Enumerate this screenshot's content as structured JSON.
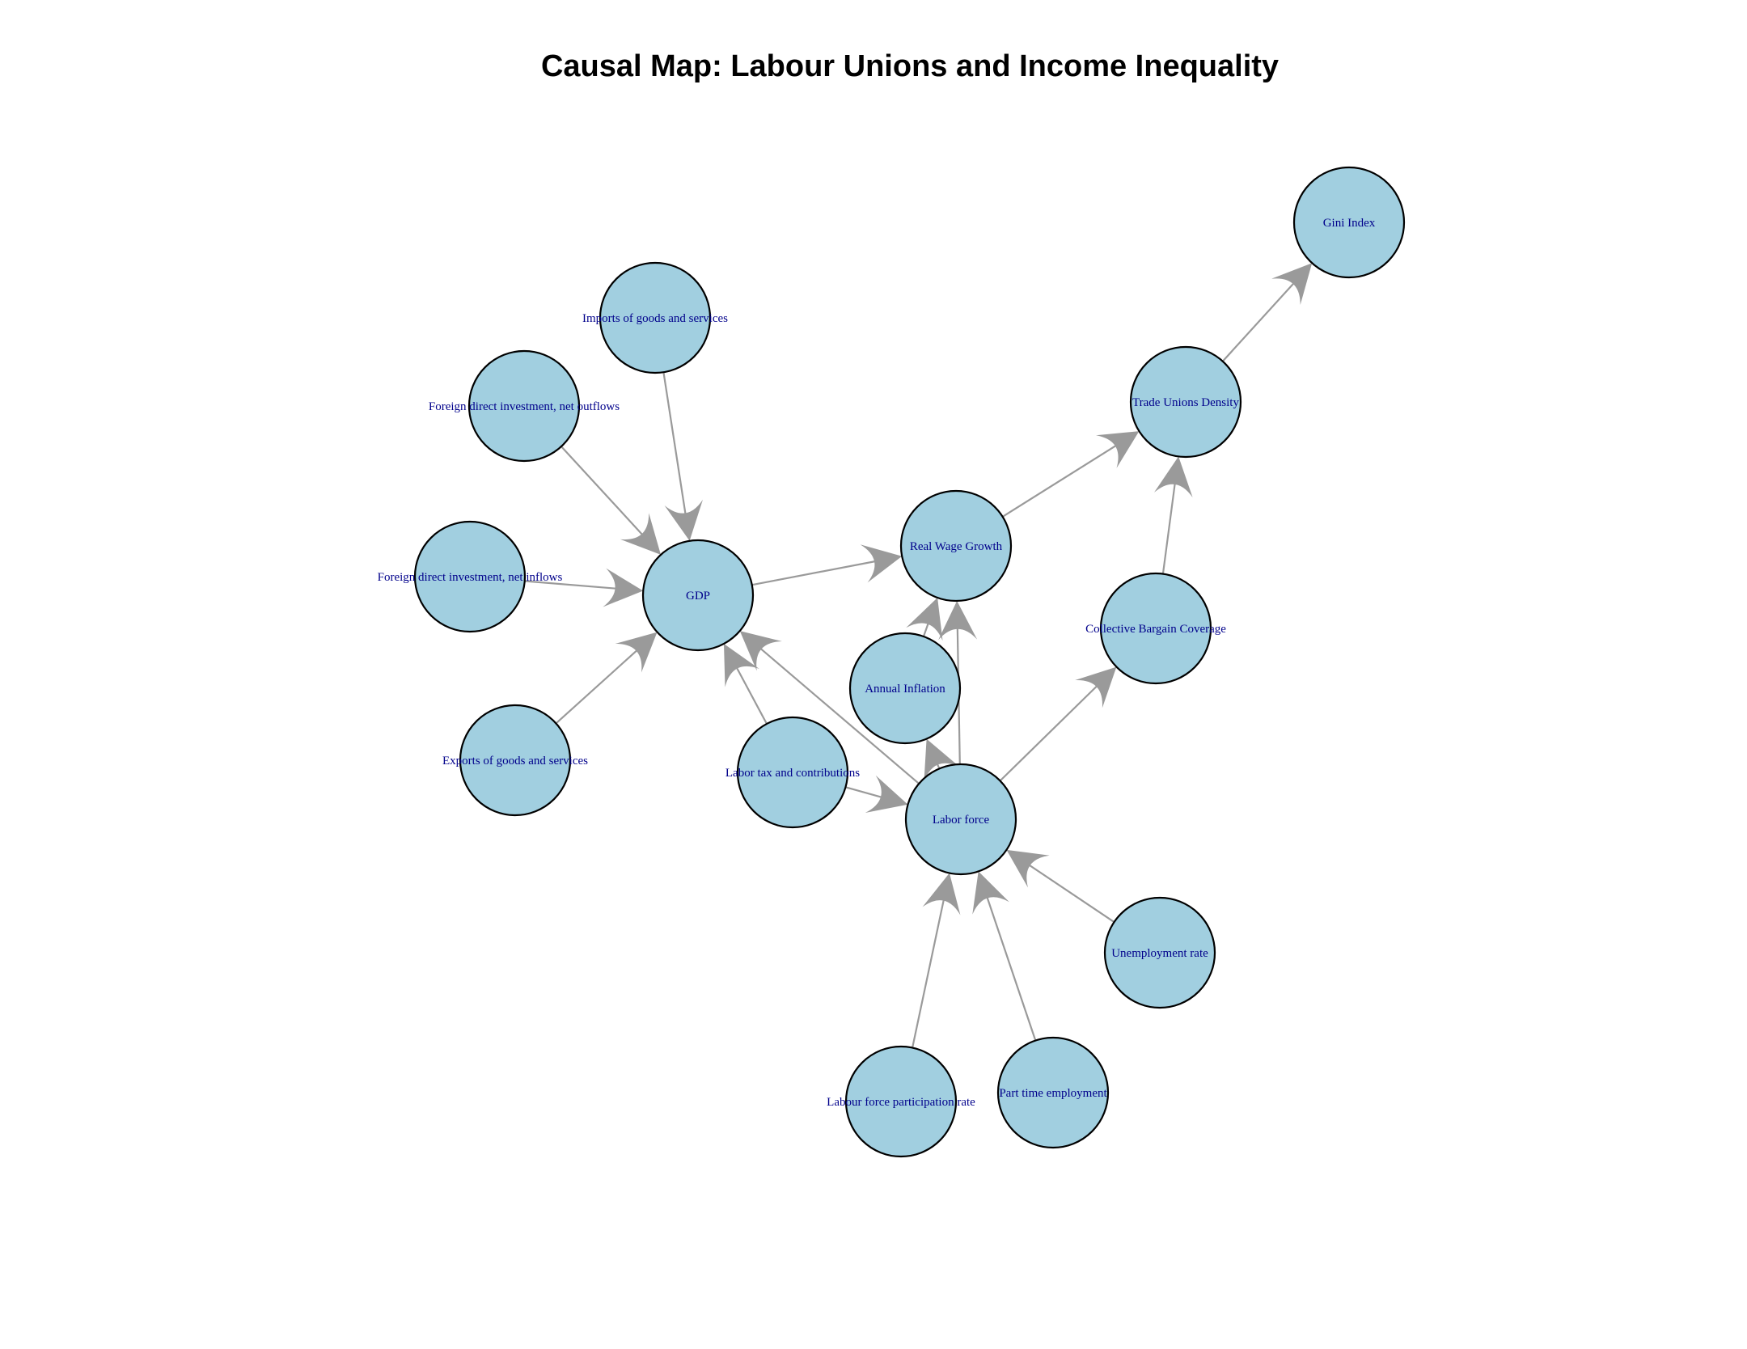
{
  "title": "Causal Map: Labour Unions and Income Inequality",
  "colors": {
    "node_fill": "#a1cfe0",
    "node_stroke": "#000000",
    "label": "#00008b",
    "edge": "#9a9a9a"
  },
  "nodes": [
    {
      "id": "gini",
      "label": "Gini Index"
    },
    {
      "id": "imports",
      "label": "Imports of goods and services"
    },
    {
      "id": "trade_unions",
      "label": "Trade Unions Density"
    },
    {
      "id": "fdi_out",
      "label": "Foreign direct investment, net outflows"
    },
    {
      "id": "real_wage",
      "label": "Real Wage Growth"
    },
    {
      "id": "fdi_in",
      "label": "Foreign direct investment, net inflows"
    },
    {
      "id": "gdp",
      "label": "GDP"
    },
    {
      "id": "collective",
      "label": "Collective Bargain Coverage"
    },
    {
      "id": "inflation",
      "label": "Annual Inflation"
    },
    {
      "id": "exports",
      "label": "Exports of goods and services"
    },
    {
      "id": "labor_tax",
      "label": "Labor tax and contributions"
    },
    {
      "id": "labor_force",
      "label": "Labor force"
    },
    {
      "id": "unemployment",
      "label": "Unemployment rate"
    },
    {
      "id": "part_time",
      "label": "Part time employment"
    },
    {
      "id": "lfpr",
      "label": "Labour force participation rate"
    }
  ],
  "edges": [
    {
      "from": "trade_unions",
      "to": "gini"
    },
    {
      "from": "real_wage",
      "to": "trade_unions"
    },
    {
      "from": "collective",
      "to": "trade_unions"
    },
    {
      "from": "gdp",
      "to": "real_wage"
    },
    {
      "from": "inflation",
      "to": "real_wage"
    },
    {
      "from": "labor_force",
      "to": "real_wage"
    },
    {
      "from": "imports",
      "to": "gdp"
    },
    {
      "from": "fdi_out",
      "to": "gdp"
    },
    {
      "from": "fdi_in",
      "to": "gdp"
    },
    {
      "from": "exports",
      "to": "gdp"
    },
    {
      "from": "labor_tax",
      "to": "gdp"
    },
    {
      "from": "labor_force",
      "to": "gdp"
    },
    {
      "from": "labor_force",
      "to": "collective"
    },
    {
      "from": "labor_force",
      "to": "inflation"
    },
    {
      "from": "labor_tax",
      "to": "labor_force"
    },
    {
      "from": "unemployment",
      "to": "labor_force"
    },
    {
      "from": "part_time",
      "to": "labor_force"
    },
    {
      "from": "lfpr",
      "to": "labor_force"
    }
  ]
}
